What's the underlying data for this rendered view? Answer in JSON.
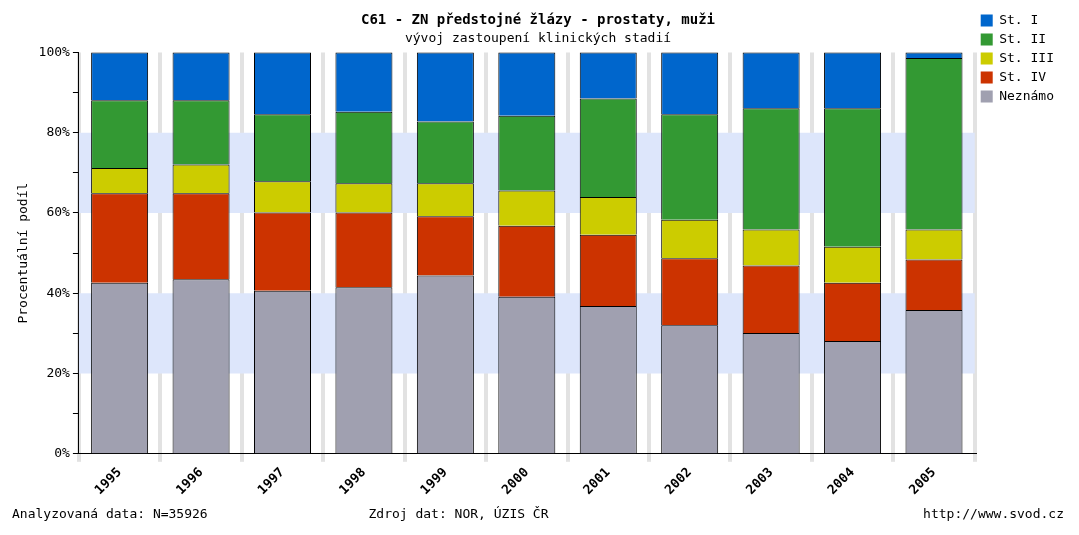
{
  "chart_data": {
    "type": "bar",
    "stacked": true,
    "title": "C61 - ZN předstojné žlázy - prostaty, muži",
    "subtitle": "vývoj zastoupení klinických stadií",
    "ylabel": "Procentuální podíl",
    "categories": [
      "1995",
      "1996",
      "1997",
      "1998",
      "1999",
      "2000",
      "2001",
      "2002",
      "2003",
      "2004",
      "2005"
    ],
    "series": [
      {
        "name": "Neznámo",
        "color": "#a0a0b0",
        "values": [
          42.6,
          43.5,
          40.6,
          41.5,
          44.4,
          39.1,
          36.8,
          32.0,
          30.1,
          28.1,
          35.8
        ]
      },
      {
        "name": "St. IV",
        "color": "#cc3300",
        "values": [
          22.3,
          21.4,
          19.5,
          18.6,
          14.8,
          17.7,
          17.8,
          16.7,
          16.8,
          14.5,
          12.6
        ]
      },
      {
        "name": "St. III",
        "color": "#cccc00",
        "values": [
          6.3,
          7.2,
          7.8,
          7.3,
          8.2,
          8.8,
          9.4,
          9.6,
          9.0,
          9.0,
          7.5
        ]
      },
      {
        "name": "St. II",
        "color": "#339933",
        "values": [
          16.9,
          16.0,
          16.7,
          17.8,
          15.4,
          18.6,
          24.5,
          26.3,
          30.2,
          34.5,
          42.7
        ]
      },
      {
        "name": "St. I",
        "color": "#0066cc",
        "values": [
          11.9,
          11.9,
          15.4,
          14.8,
          17.2,
          15.8,
          11.5,
          15.4,
          13.9,
          13.9,
          1.4
        ]
      }
    ],
    "ylim": [
      0,
      100
    ],
    "yticks": [
      {
        "value": 0,
        "label": "0%"
      },
      {
        "value": 10,
        "label": null
      },
      {
        "value": 20,
        "label": "20%"
      },
      {
        "value": 30,
        "label": null
      },
      {
        "value": 40,
        "label": "40%"
      },
      {
        "value": 50,
        "label": null
      },
      {
        "value": 60,
        "label": "60%"
      },
      {
        "value": 70,
        "label": null
      },
      {
        "value": 80,
        "label": "80%"
      },
      {
        "value": 90,
        "label": null
      },
      {
        "value": 100,
        "label": "100%"
      }
    ],
    "grid": true,
    "legend": "top right",
    "annotations": [
      "Analyzovaná data: N=35926",
      "Zdroj dat: NOR, ÚZIS ČR",
      "http://www.svod.cz"
    ]
  }
}
